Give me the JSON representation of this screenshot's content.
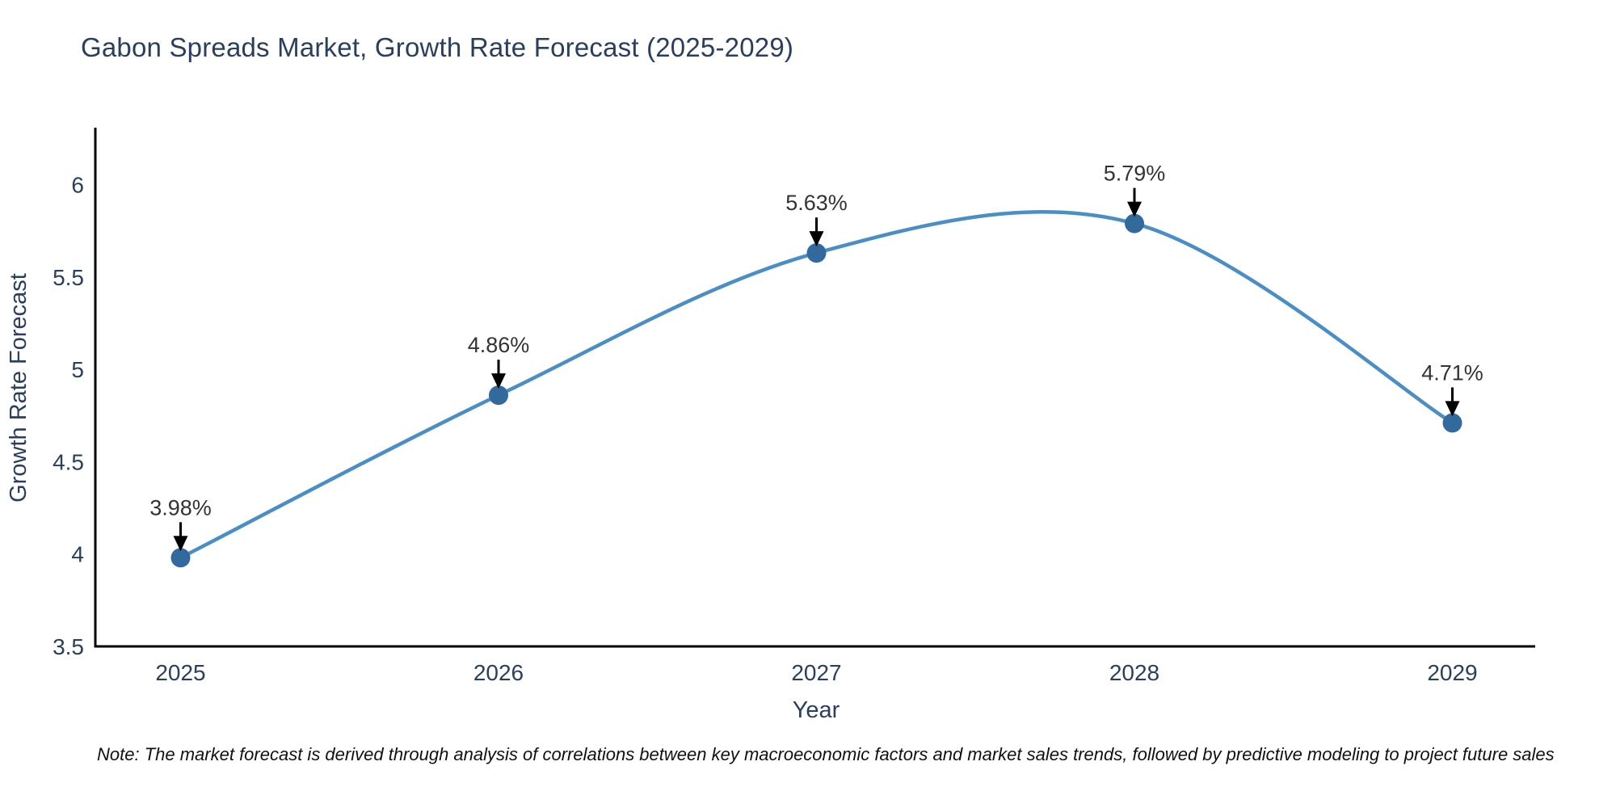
{
  "title": "Gabon Spreads Market, Growth Rate Forecast (2025-2029)",
  "note": "Note: The market forecast is derived through analysis of correlations between key macroeconomic factors and market sales trends, followed by predictive modeling to project future sales",
  "chart_data": {
    "type": "line",
    "title": "Gabon Spreads Market, Growth Rate Forecast (2025-2029)",
    "xlabel": "Year",
    "ylabel": "Growth Rate Forecast",
    "categories": [
      "2025",
      "2026",
      "2027",
      "2028",
      "2029"
    ],
    "values": [
      3.98,
      4.86,
      5.63,
      5.79,
      4.71
    ],
    "point_labels": [
      "3.98%",
      "4.86%",
      "5.63%",
      "5.79%",
      "4.71%"
    ],
    "yticks": [
      "3.5",
      "4",
      "4.5",
      "5",
      "5.5",
      "6"
    ],
    "ytick_values": [
      3.5,
      4.0,
      4.5,
      5.0,
      5.5,
      6.0
    ],
    "ylim": [
      3.5,
      6.3
    ],
    "grid": false,
    "legend": "none",
    "smooth": true,
    "line_color": "#4a8ec6",
    "marker_color": "#336a9d",
    "arrow_color": "#000000",
    "axis_color": "#000000",
    "text_color": "#2a3f5f",
    "annotation_text_color": "#333333"
  }
}
